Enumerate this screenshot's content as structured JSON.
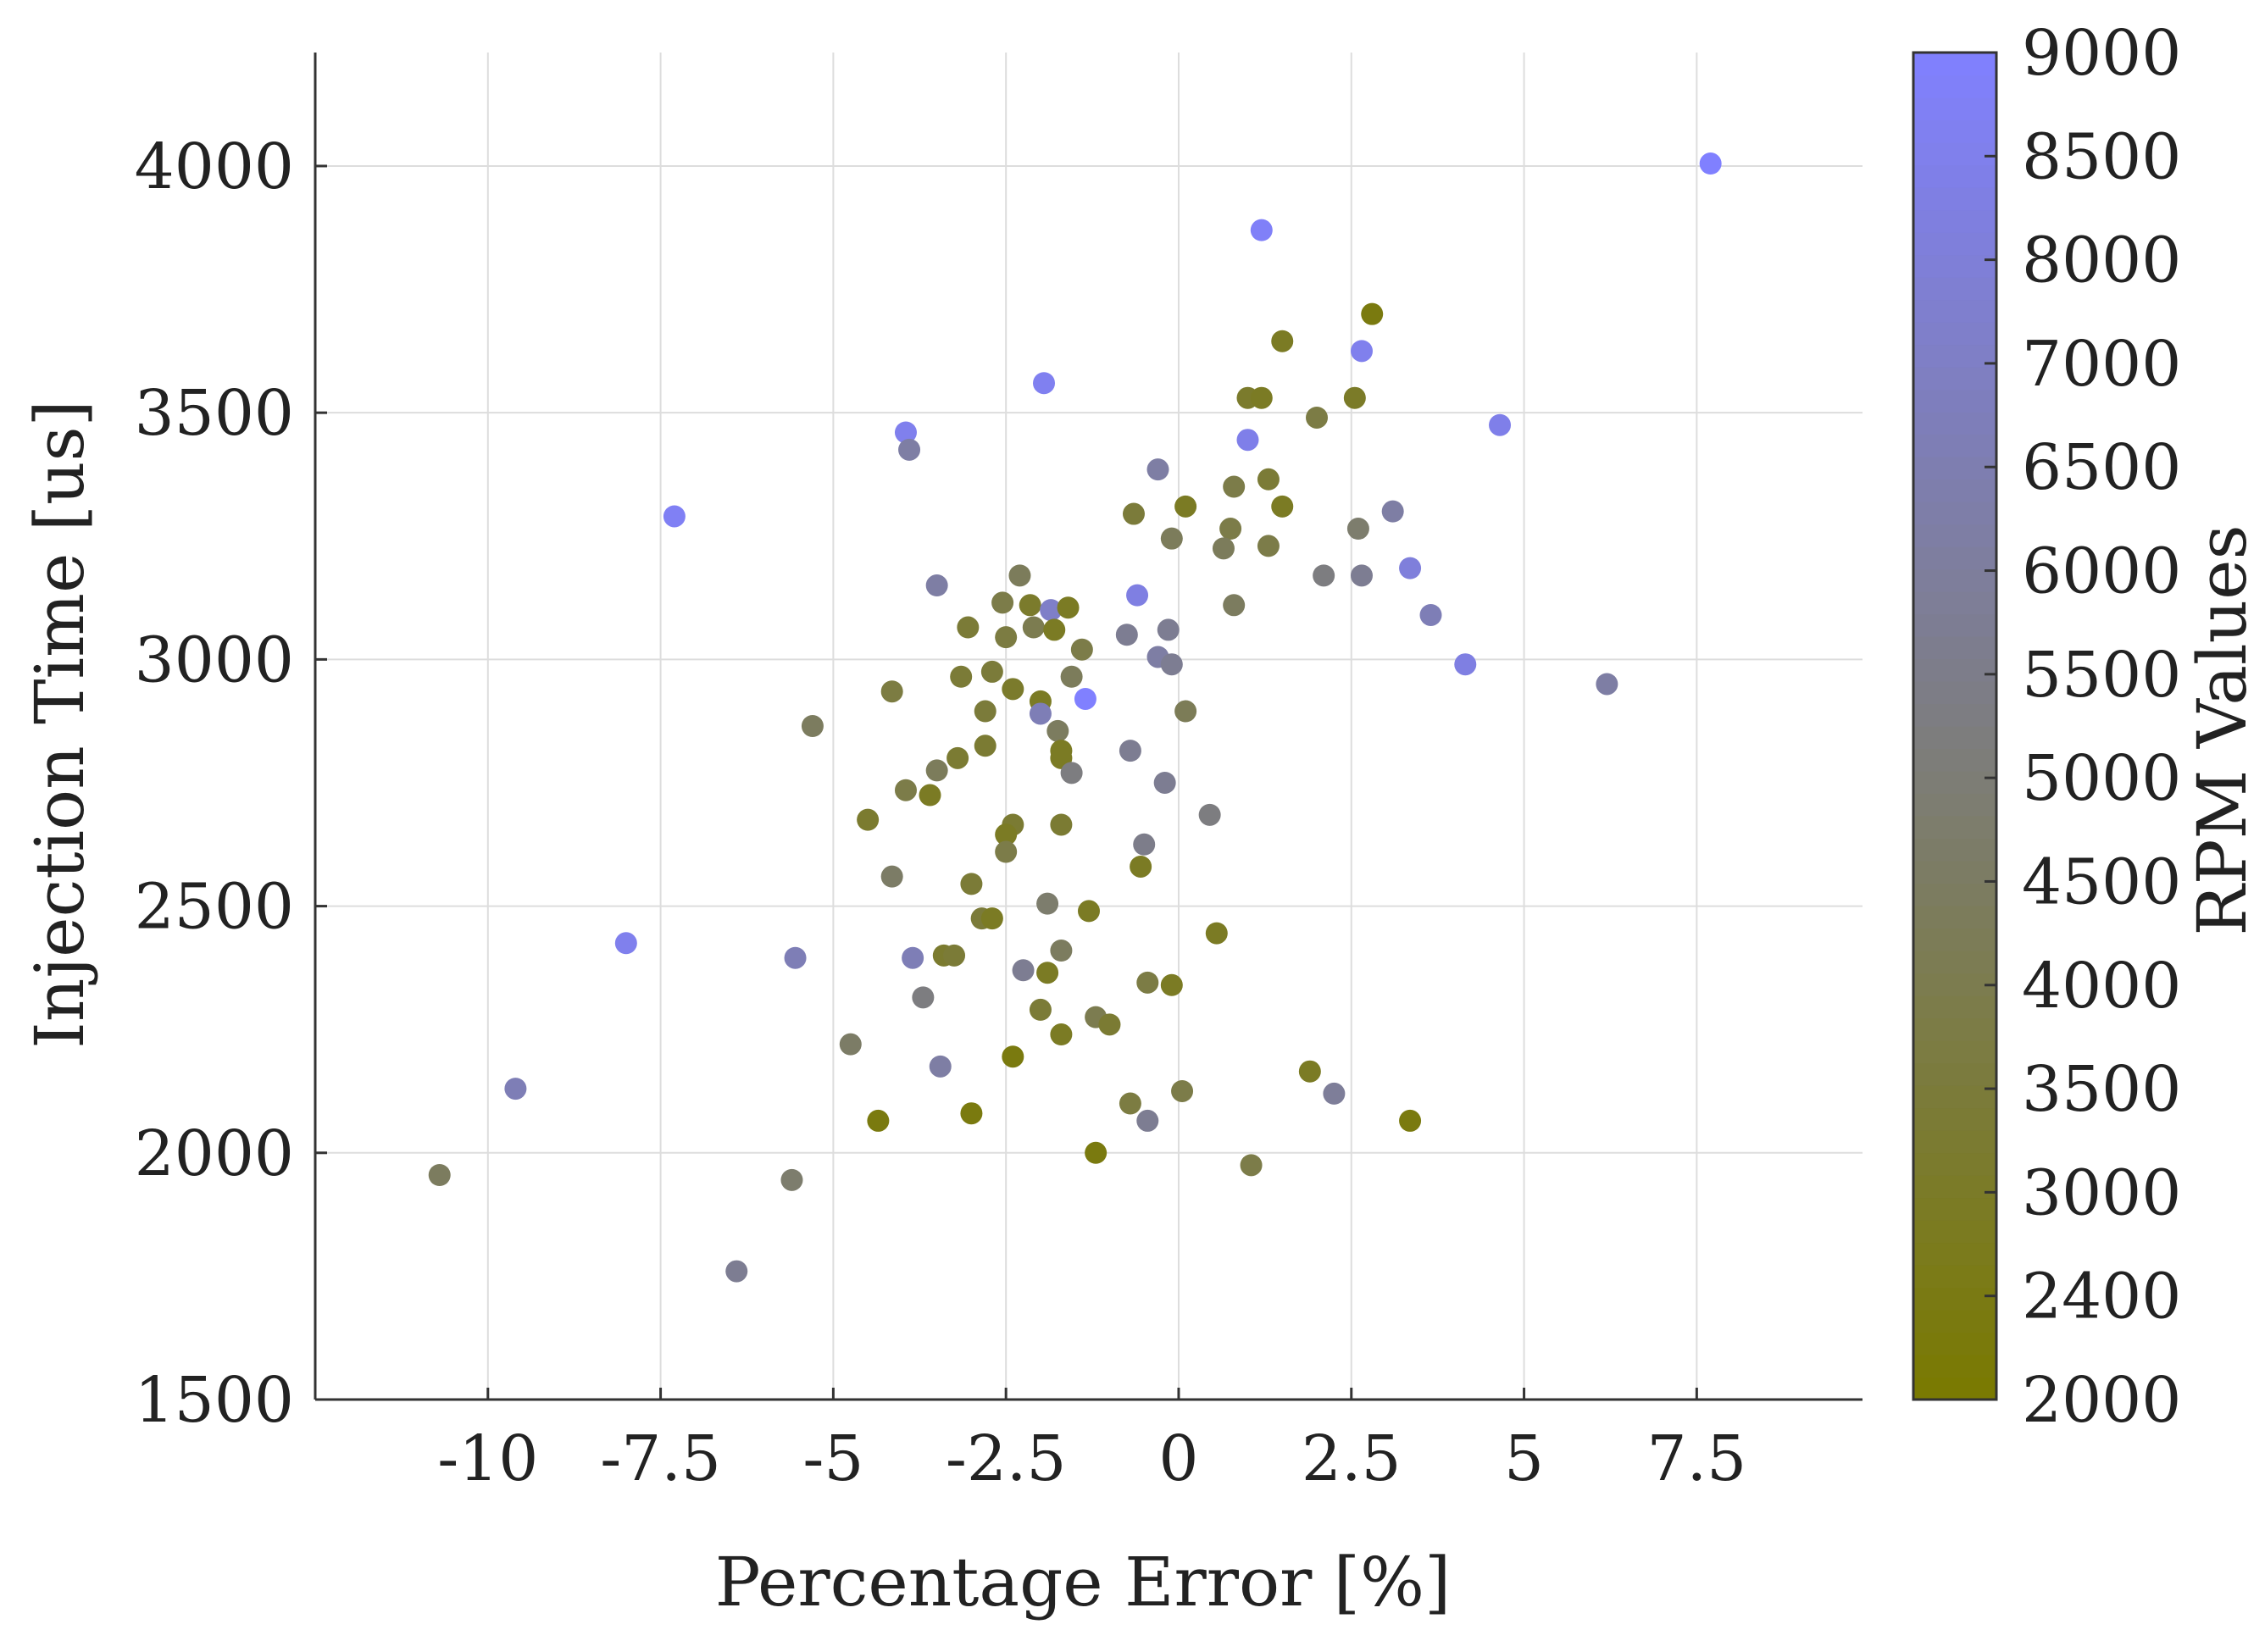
{
  "chart_data": {
    "type": "scatter",
    "title": "",
    "xlabel": "Percentage Error [%]",
    "ylabel": "Injection Time [us]",
    "xlim": [
      -12.5,
      9.9
    ],
    "ylim": [
      1500,
      4230
    ],
    "xticks": [
      -10,
      -7.5,
      -5,
      -2.5,
      0,
      2.5,
      5,
      7.5
    ],
    "xtick_labels": [
      "-10",
      "-7.5",
      "-5",
      "-2.5",
      "0",
      "2.5",
      "5",
      "7.5"
    ],
    "yticks": [
      1500,
      2000,
      2500,
      3000,
      3500,
      4000
    ],
    "ytick_labels": [
      "1500",
      "2000",
      "2500",
      "3000",
      "3500",
      "4000"
    ],
    "grid": true,
    "colorbar": {
      "label": "RPM Values",
      "ticks": [
        2000,
        2400,
        3000,
        3500,
        4000,
        4500,
        5000,
        5500,
        6000,
        6500,
        7000,
        8000,
        8500,
        9000
      ],
      "tick_labels": [
        "2000",
        "2400",
        "3000",
        "3500",
        "4000",
        "4500",
        "5000",
        "5500",
        "6000",
        "6500",
        "7000",
        "8000",
        "8500",
        "9000"
      ],
      "low_color": "#7a7a00",
      "high_color": "#8080ff"
    },
    "points": [
      {
        "x": 7.7,
        "y": 4005,
        "rpm": 9000
      },
      {
        "x": 1.2,
        "y": 3870,
        "rpm": 8800
      },
      {
        "x": 2.8,
        "y": 3700,
        "rpm": 2400
      },
      {
        "x": 1.5,
        "y": 3645,
        "rpm": 3000
      },
      {
        "x": 2.65,
        "y": 3625,
        "rpm": 8500
      },
      {
        "x": -1.95,
        "y": 3560,
        "rpm": 8600
      },
      {
        "x": 1.0,
        "y": 3530,
        "rpm": 3200
      },
      {
        "x": 1.2,
        "y": 3530,
        "rpm": 3000
      },
      {
        "x": 2.55,
        "y": 3530,
        "rpm": 3100
      },
      {
        "x": 2.0,
        "y": 3490,
        "rpm": 3900
      },
      {
        "x": 4.65,
        "y": 3475,
        "rpm": 8400
      },
      {
        "x": -3.95,
        "y": 3460,
        "rpm": 8500
      },
      {
        "x": 1.0,
        "y": 3445,
        "rpm": 8400
      },
      {
        "x": -3.9,
        "y": 3425,
        "rpm": 6500
      },
      {
        "x": -0.3,
        "y": 3385,
        "rpm": 6500
      },
      {
        "x": 1.3,
        "y": 3365,
        "rpm": 3500
      },
      {
        "x": 0.8,
        "y": 3350,
        "rpm": 4000
      },
      {
        "x": 0.1,
        "y": 3310,
        "rpm": 3000
      },
      {
        "x": 1.5,
        "y": 3310,
        "rpm": 3000
      },
      {
        "x": 3.1,
        "y": 3300,
        "rpm": 6500
      },
      {
        "x": -7.3,
        "y": 3290,
        "rpm": 8700
      },
      {
        "x": -0.65,
        "y": 3295,
        "rpm": 3600
      },
      {
        "x": 0.75,
        "y": 3265,
        "rpm": 4000
      },
      {
        "x": 2.6,
        "y": 3265,
        "rpm": 5000
      },
      {
        "x": -0.1,
        "y": 3245,
        "rpm": 4500
      },
      {
        "x": 0.65,
        "y": 3225,
        "rpm": 4500
      },
      {
        "x": 1.3,
        "y": 3230,
        "rpm": 4000
      },
      {
        "x": 3.35,
        "y": 3185,
        "rpm": 8000
      },
      {
        "x": 2.1,
        "y": 3170,
        "rpm": 5500
      },
      {
        "x": 2.65,
        "y": 3170,
        "rpm": 6000
      },
      {
        "x": -2.3,
        "y": 3170,
        "rpm": 4500
      },
      {
        "x": -3.5,
        "y": 3150,
        "rpm": 6500
      },
      {
        "x": -0.6,
        "y": 3130,
        "rpm": 8200
      },
      {
        "x": -2.55,
        "y": 3115,
        "rpm": 4000
      },
      {
        "x": -2.15,
        "y": 3110,
        "rpm": 3200
      },
      {
        "x": -1.85,
        "y": 3100,
        "rpm": 7500
      },
      {
        "x": -1.6,
        "y": 3105,
        "rpm": 3000
      },
      {
        "x": 0.8,
        "y": 3110,
        "rpm": 4600
      },
      {
        "x": 3.65,
        "y": 3090,
        "rpm": 7000
      },
      {
        "x": -3.05,
        "y": 3065,
        "rpm": 3500
      },
      {
        "x": -2.1,
        "y": 3065,
        "rpm": 4200
      },
      {
        "x": -1.8,
        "y": 3060,
        "rpm": 3000
      },
      {
        "x": -0.75,
        "y": 3050,
        "rpm": 6000
      },
      {
        "x": -0.15,
        "y": 3060,
        "rpm": 6000
      },
      {
        "x": -2.5,
        "y": 3045,
        "rpm": 3800
      },
      {
        "x": -1.4,
        "y": 3020,
        "rpm": 4000
      },
      {
        "x": -0.3,
        "y": 3005,
        "rpm": 6500
      },
      {
        "x": -0.1,
        "y": 2990,
        "rpm": 6000
      },
      {
        "x": 4.15,
        "y": 2990,
        "rpm": 8200
      },
      {
        "x": -2.7,
        "y": 2975,
        "rpm": 3600
      },
      {
        "x": -1.55,
        "y": 2965,
        "rpm": 4500
      },
      {
        "x": -3.15,
        "y": 2965,
        "rpm": 3500
      },
      {
        "x": 6.2,
        "y": 2950,
        "rpm": 6500
      },
      {
        "x": -2.4,
        "y": 2940,
        "rpm": 3200
      },
      {
        "x": -4.15,
        "y": 2935,
        "rpm": 3800
      },
      {
        "x": -1.35,
        "y": 2920,
        "rpm": 9000
      },
      {
        "x": -2.0,
        "y": 2915,
        "rpm": 3000
      },
      {
        "x": -2.8,
        "y": 2895,
        "rpm": 3600
      },
      {
        "x": 0.1,
        "y": 2895,
        "rpm": 4400
      },
      {
        "x": -2.0,
        "y": 2890,
        "rpm": 7000
      },
      {
        "x": -5.3,
        "y": 2865,
        "rpm": 4600
      },
      {
        "x": -1.75,
        "y": 2855,
        "rpm": 4600
      },
      {
        "x": -2.8,
        "y": 2825,
        "rpm": 3400
      },
      {
        "x": -0.7,
        "y": 2815,
        "rpm": 6000
      },
      {
        "x": -1.7,
        "y": 2815,
        "rpm": 3000
      },
      {
        "x": -3.2,
        "y": 2800,
        "rpm": 3400
      },
      {
        "x": -1.7,
        "y": 2800,
        "rpm": 3000
      },
      {
        "x": -3.5,
        "y": 2775,
        "rpm": 4500
      },
      {
        "x": -1.55,
        "y": 2770,
        "rpm": 5500
      },
      {
        "x": -0.2,
        "y": 2750,
        "rpm": 6000
      },
      {
        "x": -3.95,
        "y": 2735,
        "rpm": 4000
      },
      {
        "x": -3.6,
        "y": 2725,
        "rpm": 3000
      },
      {
        "x": 0.45,
        "y": 2685,
        "rpm": 5500
      },
      {
        "x": -4.5,
        "y": 2675,
        "rpm": 3300
      },
      {
        "x": -2.4,
        "y": 2665,
        "rpm": 3400
      },
      {
        "x": -1.7,
        "y": 2665,
        "rpm": 3400
      },
      {
        "x": -2.5,
        "y": 2645,
        "rpm": 3000
      },
      {
        "x": -0.5,
        "y": 2625,
        "rpm": 5800
      },
      {
        "x": -2.5,
        "y": 2610,
        "rpm": 4000
      },
      {
        "x": -0.55,
        "y": 2580,
        "rpm": 3000
      },
      {
        "x": -4.15,
        "y": 2560,
        "rpm": 4800
      },
      {
        "x": -3.0,
        "y": 2545,
        "rpm": 3500
      },
      {
        "x": -1.9,
        "y": 2505,
        "rpm": 5000
      },
      {
        "x": -1.3,
        "y": 2490,
        "rpm": 3000
      },
      {
        "x": -2.85,
        "y": 2475,
        "rpm": 3600
      },
      {
        "x": -2.7,
        "y": 2475,
        "rpm": 3000
      },
      {
        "x": 0.55,
        "y": 2445,
        "rpm": 3000
      },
      {
        "x": -8.0,
        "y": 2425,
        "rpm": 8500
      },
      {
        "x": -1.7,
        "y": 2410,
        "rpm": 4600
      },
      {
        "x": -3.4,
        "y": 2400,
        "rpm": 3300
      },
      {
        "x": -3.25,
        "y": 2400,
        "rpm": 3500
      },
      {
        "x": -5.55,
        "y": 2395,
        "rpm": 7000
      },
      {
        "x": -3.85,
        "y": 2395,
        "rpm": 7000
      },
      {
        "x": -2.25,
        "y": 2370,
        "rpm": 6000
      },
      {
        "x": -1.9,
        "y": 2365,
        "rpm": 3000
      },
      {
        "x": -0.45,
        "y": 2345,
        "rpm": 3900
      },
      {
        "x": -0.1,
        "y": 2340,
        "rpm": 3000
      },
      {
        "x": -3.7,
        "y": 2315,
        "rpm": 5500
      },
      {
        "x": -2.0,
        "y": 2290,
        "rpm": 3500
      },
      {
        "x": -1.2,
        "y": 2275,
        "rpm": 4200
      },
      {
        "x": -1.0,
        "y": 2260,
        "rpm": 3400
      },
      {
        "x": -1.7,
        "y": 2240,
        "rpm": 3000
      },
      {
        "x": -4.75,
        "y": 2220,
        "rpm": 4800
      },
      {
        "x": -2.4,
        "y": 2195,
        "rpm": 2400
      },
      {
        "x": -3.45,
        "y": 2175,
        "rpm": 6500
      },
      {
        "x": 1.9,
        "y": 2165,
        "rpm": 3000
      },
      {
        "x": -9.6,
        "y": 2130,
        "rpm": 7000
      },
      {
        "x": 0.05,
        "y": 2125,
        "rpm": 4000
      },
      {
        "x": 2.25,
        "y": 2120,
        "rpm": 6200
      },
      {
        "x": -0.7,
        "y": 2100,
        "rpm": 3800
      },
      {
        "x": -3.0,
        "y": 2080,
        "rpm": 2400
      },
      {
        "x": -4.35,
        "y": 2065,
        "rpm": 2400
      },
      {
        "x": -0.45,
        "y": 2065,
        "rpm": 6000
      },
      {
        "x": 3.35,
        "y": 2065,
        "rpm": 2400
      },
      {
        "x": -1.2,
        "y": 2000,
        "rpm": 2400
      },
      {
        "x": 1.05,
        "y": 1975,
        "rpm": 4000
      },
      {
        "x": -10.7,
        "y": 1955,
        "rpm": 4600
      },
      {
        "x": -5.6,
        "y": 1945,
        "rpm": 5000
      },
      {
        "x": -6.4,
        "y": 1760,
        "rpm": 6000
      }
    ]
  }
}
